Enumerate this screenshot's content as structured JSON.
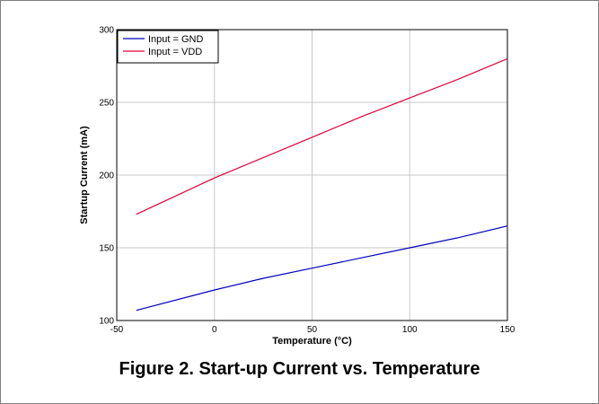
{
  "figure": {
    "caption": "Figure 2. Start-up Current vs. Temperature"
  },
  "chart_data": {
    "type": "line",
    "xlabel": "Temperature (°C)",
    "ylabel": "Startup Current (mA)",
    "xlim": [
      -50,
      150
    ],
    "ylim": [
      100,
      300
    ],
    "xticks": [
      -50,
      0,
      50,
      100,
      150
    ],
    "yticks": [
      100,
      150,
      200,
      250,
      300
    ],
    "grid": true,
    "legend_position": "top-left",
    "series": [
      {
        "name": "Input = GND",
        "color": "#0000c0",
        "x": [
          -40,
          0,
          25,
          50,
          75,
          100,
          125,
          150
        ],
        "y": [
          107,
          121,
          129,
          136,
          143,
          150,
          157,
          165
        ]
      },
      {
        "name": "Input = VDD",
        "color": "#e0003c",
        "x": [
          -40,
          0,
          25,
          50,
          75,
          100,
          125,
          150
        ],
        "y": [
          173,
          198,
          212,
          226,
          240,
          253,
          266,
          280
        ]
      }
    ]
  }
}
